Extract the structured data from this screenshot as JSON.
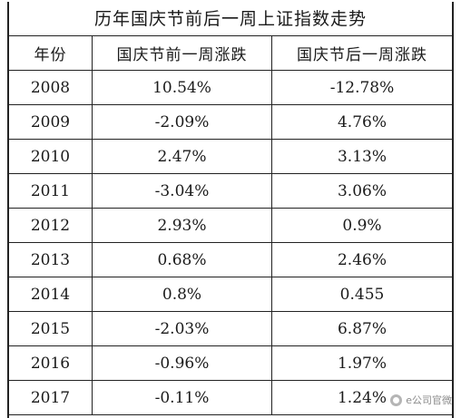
{
  "table": {
    "title": "历年国庆节前后一周上证指数走势",
    "headers": [
      "年份",
      "国庆节前一周涨跌",
      "国庆节后一周涨跌"
    ],
    "rows": [
      [
        "2008",
        "10.54%",
        "-12.78%"
      ],
      [
        "2009",
        "-2.09%",
        "4.76%"
      ],
      [
        "2010",
        "2.47%",
        "3.13%"
      ],
      [
        "2011",
        "-3.04%",
        "3.06%"
      ],
      [
        "2012",
        "2.93%",
        "0.9%"
      ],
      [
        "2013",
        "0.68%",
        "2.46%"
      ],
      [
        "2014",
        "0.8%",
        "0.455"
      ],
      [
        "2015",
        "-2.03%",
        "6.87%"
      ],
      [
        "2016",
        "-0.96%",
        "1.97%"
      ],
      [
        "2017",
        "-0.11%",
        "1.24%"
      ]
    ]
  },
  "watermark": {
    "text": "e公司官微",
    "icon": "wechat-icon"
  }
}
